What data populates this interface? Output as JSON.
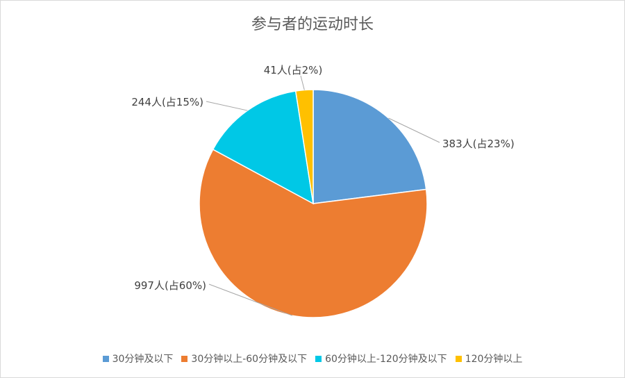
{
  "chart_data": {
    "type": "pie",
    "title": "参与者的运动时长",
    "slices": [
      {
        "name": "30分钟及以下",
        "value": 383,
        "label": "383人(占23%)",
        "color": "#5b9bd5"
      },
      {
        "name": "30分钟以上-60分钟及以下",
        "value": 997,
        "label": "997人(占60%)",
        "color": "#ed7d31"
      },
      {
        "name": "60分钟以上-120分钟及以下",
        "value": 244,
        "label": "244人(占15%)",
        "color": "#00c8e6"
      },
      {
        "name": "120分钟以上",
        "value": 41,
        "label": "41人(占2%)",
        "color": "#ffc000"
      }
    ],
    "legend_position": "bottom"
  }
}
